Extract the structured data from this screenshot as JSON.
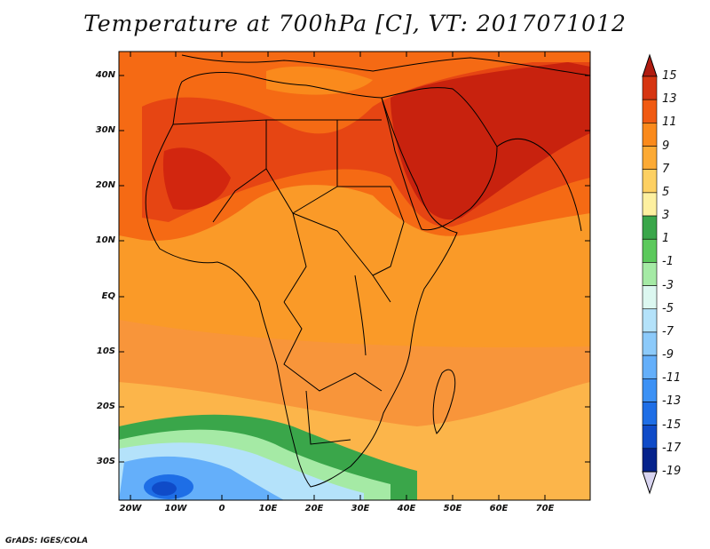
{
  "title": "Temperature at 700hPa [C], VT: 2017071012",
  "credit": "GrADS: IGES/COLA",
  "lat_labels": [
    "40N",
    "30N",
    "20N",
    "10N",
    "EQ",
    "10S",
    "20S",
    "30S"
  ],
  "lon_labels": [
    "20W",
    "10W",
    "0",
    "10E",
    "20E",
    "30E",
    "40E",
    "50E",
    "60E",
    "70E"
  ],
  "colorbar": {
    "labels": [
      "15",
      "13",
      "11",
      "9",
      "7",
      "5",
      "3",
      "1",
      "-1",
      "-3",
      "-5",
      "-7",
      "-9",
      "-11",
      "-13",
      "-15",
      "-17",
      "-19"
    ],
    "colors": [
      "#b01b10",
      "#d63511",
      "#f05a12",
      "#fa8a1c",
      "#fcaa35",
      "#fdd062",
      "#fdf0a0",
      "#3aa64a",
      "#5cc95c",
      "#a5eaa5",
      "#dcf7f0",
      "#b4e2fa",
      "#8ccafa",
      "#64affa",
      "#3c91f5",
      "#1e6ee6",
      "#0f4bc8",
      "#06238c",
      "#d8d4f0"
    ]
  },
  "colors": {
    "hot": "#d2260f",
    "warm": "#f56a14",
    "mild": "#fa9a28",
    "mild2": "#fcb54a",
    "cool_green": "#3aa64a",
    "cold": "#8ccafa",
    "coldest": "#1e6ee6",
    "outline": "#000000"
  }
}
